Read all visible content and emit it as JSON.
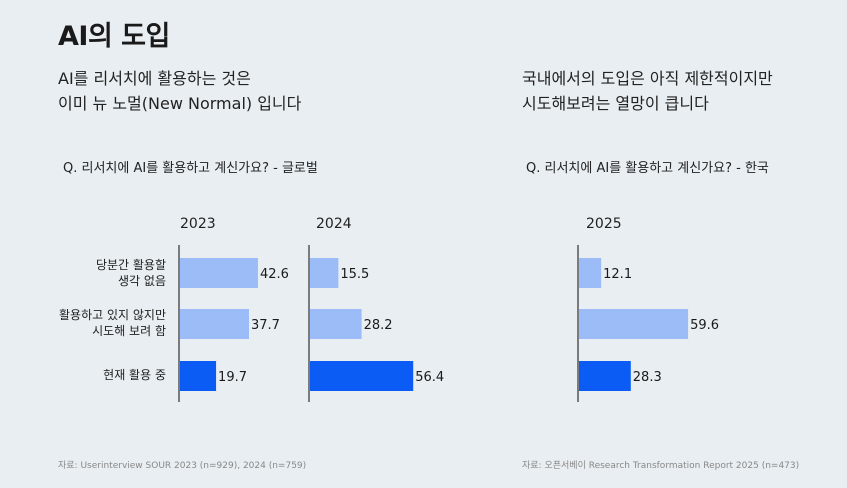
{
  "title": "AI의 도입",
  "left_subtitle": [
    "AI를 리서치에 활용하는 것은",
    "이미 뉴 노멀(New Normal) 입니다"
  ],
  "right_subtitle": [
    "국내에서의 도입은 아직 제한적이지만",
    "시도해보려는 열망이 큽니다"
  ],
  "left_question": "Q. 리서치에 AI를 활용하고 계신가요? - 글로벌",
  "right_question": "Q. 리서치에 AI를 활용하고 계신가요? - 한국",
  "categories": [
    [
      "당분간 활용할",
      "생각 없음"
    ],
    [
      "활용하고 있지 않지만",
      "시도해 보려 함"
    ],
    [
      "현재 활용 중"
    ]
  ],
  "chart_data": [
    {
      "type": "bar",
      "title": "2023",
      "categories": [
        "당분간 활용할 생각 없음",
        "활용하고 있지 않지만 시도해 보려 함",
        "현재 활용 중"
      ],
      "values": [
        42.6,
        37.7,
        19.7
      ],
      "xlim": [
        0,
        100
      ]
    },
    {
      "type": "bar",
      "title": "2024",
      "categories": [
        "당분간 활용할 생각 없음",
        "활용하고 있지 않지만 시도해 보려 함",
        "현재 활용 중"
      ],
      "values": [
        15.5,
        28.2,
        56.4
      ],
      "xlim": [
        0,
        100
      ]
    },
    {
      "type": "bar",
      "title": "2025",
      "categories": [
        "당분간 활용할 생각 없음",
        "활용하고 있지 않지만 시도해 보려 함",
        "현재 활용 중"
      ],
      "values": [
        12.1,
        59.6,
        28.3
      ],
      "xlim": [
        0,
        100
      ]
    }
  ],
  "colors": {
    "light": "#9bbcf7",
    "highlight": "#0a5cf5"
  },
  "source_left": "자료:  Userinterview SOUR 2023 (n=929), 2024 (n=759)",
  "source_right": "자료: 오픈서베이 Research Transformation Report  2025 (n=473)"
}
